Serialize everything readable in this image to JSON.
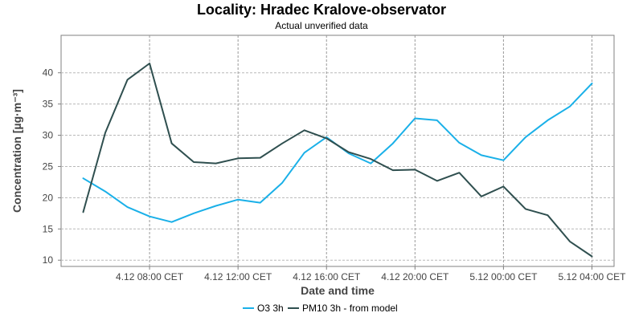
{
  "chart_data": {
    "type": "line",
    "title": "Locality: Hradec Kralove-observator",
    "subtitle": "Actual unverified data",
    "xlabel": "Date and time",
    "ylabel": "Concentration [µg·m⁻³]",
    "ylim": [
      9,
      46
    ],
    "y_ticks": [
      10,
      15,
      20,
      25,
      30,
      35,
      40
    ],
    "x_ticks": [
      {
        "label": "4.12 08:00 CET",
        "hour": 8
      },
      {
        "label": "4.12 12:00 CET",
        "hour": 12
      },
      {
        "label": "4.12 16:00 CET",
        "hour": 16
      },
      {
        "label": "4.12 20:00 CET",
        "hour": 20
      },
      {
        "label": "5.12 00:00 CET",
        "hour": 24
      },
      {
        "label": "5.12 04:00 CET",
        "hour": 28
      }
    ],
    "x_range_hours": [
      4,
      29
    ],
    "grid": true,
    "legend_position": "bottom-center",
    "series": [
      {
        "name": "O3 3h",
        "color": "#1ab0e8",
        "x_hours": [
          5,
          6,
          7,
          8,
          9,
          10,
          11,
          12,
          13,
          14,
          15,
          16,
          17,
          18,
          19,
          20,
          21,
          22,
          23,
          24,
          25,
          26,
          27,
          28
        ],
        "values": [
          23.1,
          21.0,
          18.5,
          17.0,
          16.1,
          17.5,
          18.7,
          19.7,
          19.2,
          22.4,
          27.2,
          29.7,
          27.1,
          25.5,
          28.7,
          32.7,
          32.4,
          28.8,
          26.8,
          26.0,
          29.7,
          32.4,
          34.6,
          38.3
        ]
      },
      {
        "name": "PM10 3h - from model",
        "color": "#2f4f4f",
        "x_hours": [
          5,
          6,
          7,
          8,
          9,
          10,
          11,
          12,
          13,
          14,
          15,
          16,
          17,
          18,
          19,
          20,
          21,
          22,
          23,
          24,
          25,
          26,
          27,
          28
        ],
        "values": [
          17.7,
          30.4,
          38.9,
          41.5,
          28.7,
          25.7,
          25.5,
          26.3,
          26.4,
          28.7,
          30.8,
          29.5,
          27.3,
          26.2,
          24.4,
          24.5,
          22.7,
          24.0,
          20.2,
          21.8,
          18.2,
          17.2,
          13.0,
          10.6
        ]
      }
    ]
  }
}
